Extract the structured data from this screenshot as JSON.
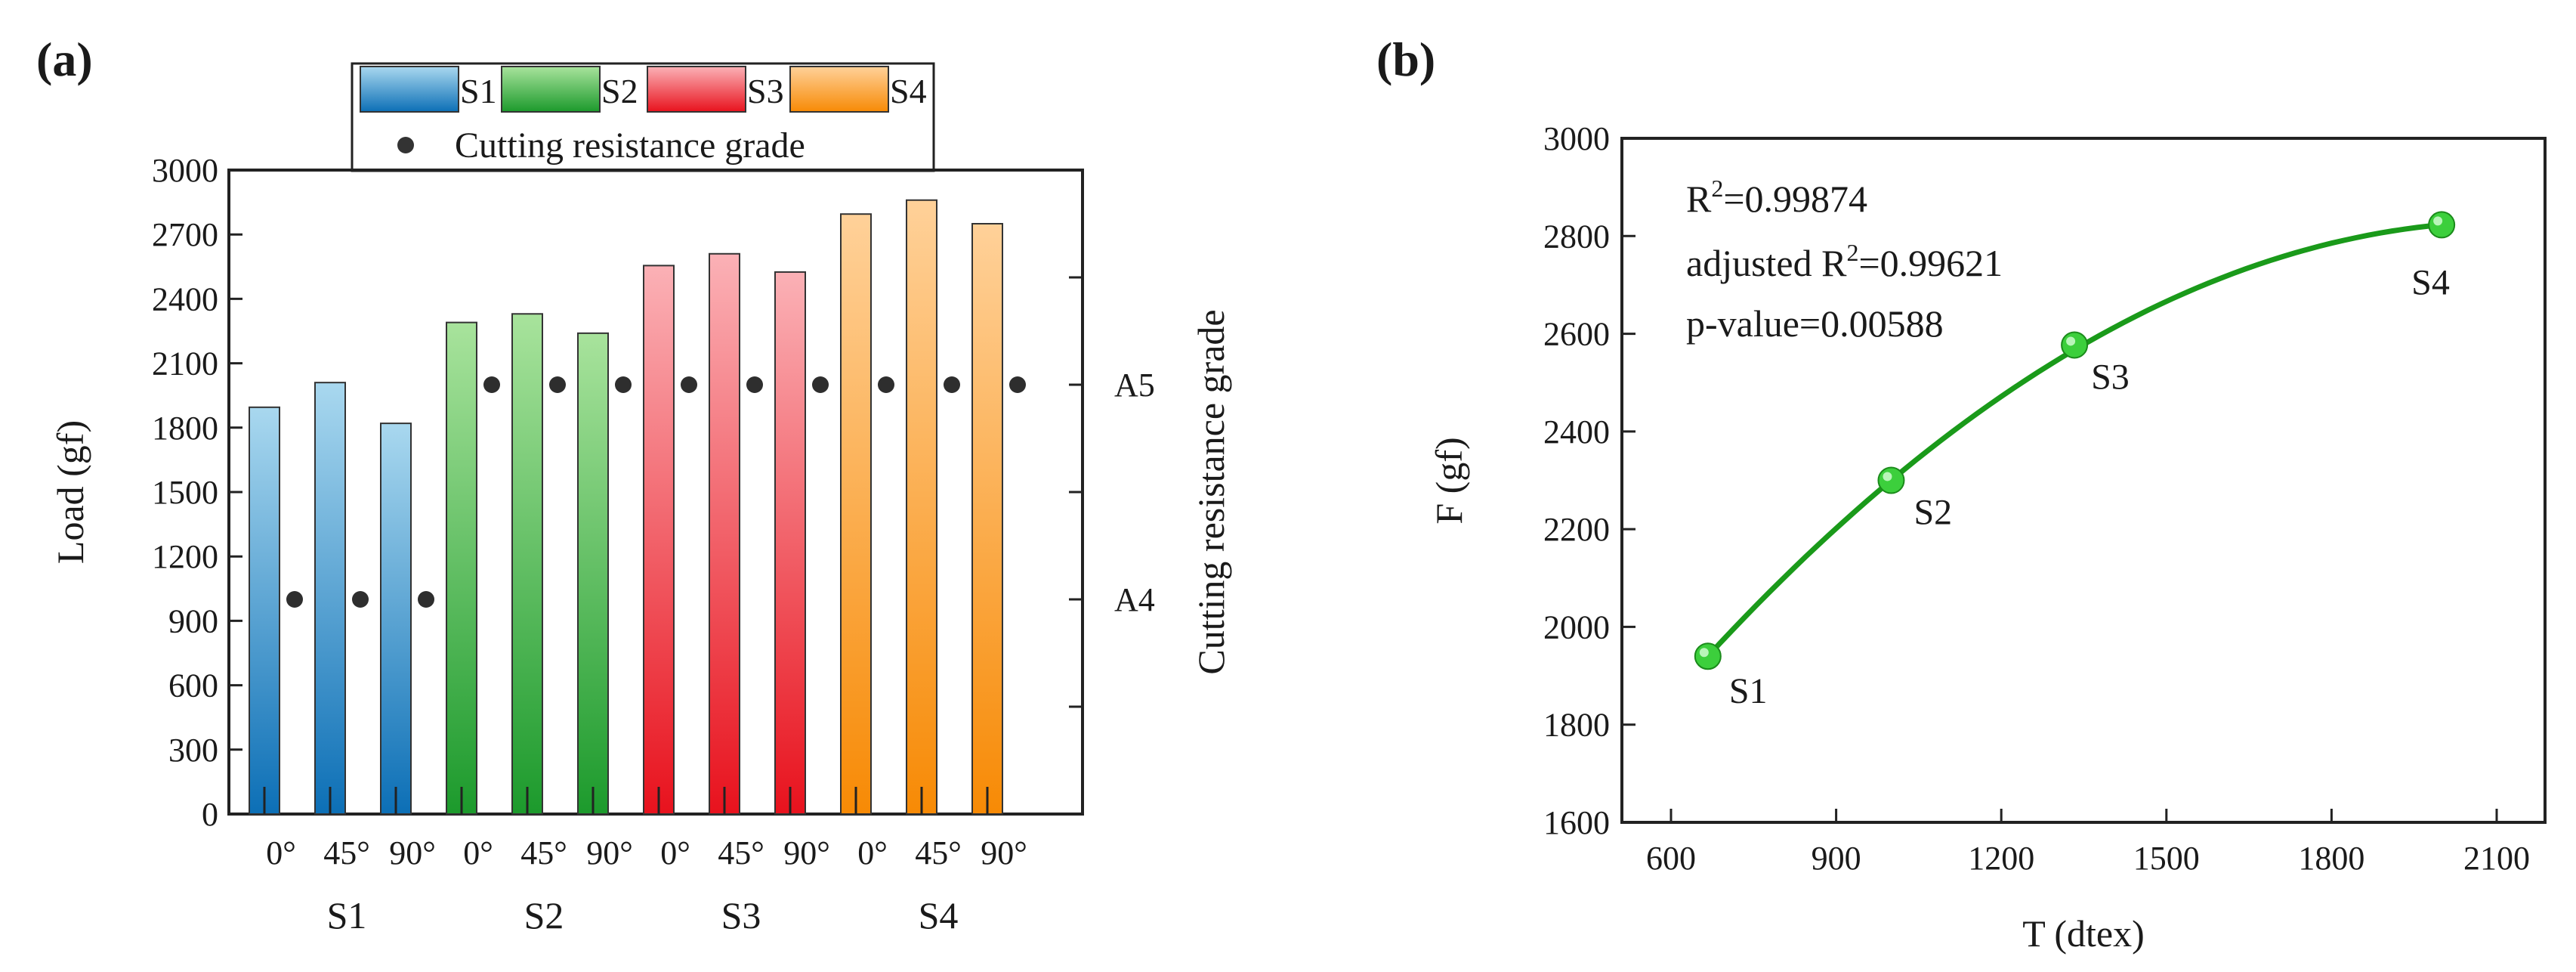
{
  "chart_data": [
    {
      "panel_label": "(a)",
      "type": "bar",
      "groups": [
        "S1",
        "S2",
        "S3",
        "S4"
      ],
      "angles": [
        "0°",
        "45°",
        "90°"
      ],
      "series": [
        {
          "name": "S1",
          "values": [
            1895,
            2010,
            1820
          ]
        },
        {
          "name": "S2",
          "values": [
            2290,
            2330,
            2240
          ]
        },
        {
          "name": "S3",
          "values": [
            2555,
            2610,
            2525
          ]
        },
        {
          "name": "S4",
          "values": [
            2795,
            2860,
            2750
          ]
        }
      ],
      "ylabel": "Load (gf)",
      "ylim": [
        0,
        3000
      ],
      "yticks": [
        "0",
        "300",
        "600",
        "900",
        "1200",
        "1500",
        "1800",
        "2100",
        "2400",
        "2700",
        "3000"
      ],
      "right_axis": {
        "label": "Cutting resistance grade",
        "tick_labels": [
          "A4",
          "A5"
        ],
        "tick_values": [
          1000,
          2000
        ]
      },
      "grade_series": {
        "name": "Cutting resistance grade",
        "values": [
          1000,
          1000,
          1000,
          2000,
          2000,
          2000,
          2000,
          2000,
          2000,
          2000,
          2000,
          2000
        ]
      },
      "legend": {
        "entries": [
          "S1",
          "S2",
          "S3",
          "S4"
        ],
        "marker_entry": "Cutting resistance grade",
        "placement": "top"
      },
      "colors": {
        "S1": [
          "#a9d8ef",
          "#0c6fb6"
        ],
        "S2": [
          "#a8e39c",
          "#1c9a2c"
        ],
        "S3": [
          "#fbb1b6",
          "#e8121d"
        ],
        "S4": [
          "#ffd199",
          "#f78a05"
        ]
      }
    },
    {
      "panel_label": "(b)",
      "type": "scatter",
      "points": [
        {
          "x": 667,
          "y": 1940,
          "label": "S1"
        },
        {
          "x": 1000,
          "y": 2300,
          "label": "S2"
        },
        {
          "x": 1333,
          "y": 2577,
          "label": "S3"
        },
        {
          "x": 2000,
          "y": 2823,
          "label": "S4"
        }
      ],
      "fit": {
        "type": "quadratic",
        "x_range": [
          667,
          2000
        ]
      },
      "xlabel": "T (dtex)",
      "ylabel": "F (gf)",
      "xlim": [
        500,
        2200
      ],
      "ylim": [
        1600,
        3000
      ],
      "xticks": [
        "600",
        "900",
        "1200",
        "1500",
        "1800",
        "2100"
      ],
      "yticks": [
        "1600",
        "1800",
        "2000",
        "2200",
        "2400",
        "2600",
        "2800",
        "3000"
      ],
      "stats": {
        "r2_text": "=0.99874",
        "adj_prefix": "adjusted R",
        "adj_text": "=0.99621",
        "p_text": "p-value=0.00588"
      },
      "color": "#1a9a1a"
    }
  ]
}
